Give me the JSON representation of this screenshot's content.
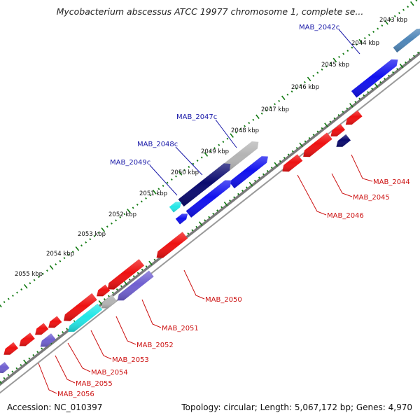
{
  "title": "Mycobacterium abscessus ATCC 19977 chromosome 1, complete se...",
  "footer": {
    "accession": "Accession: NC_010397",
    "stats": "Topology: circular; Length: 5,067,172 bp; Genes: 4,970"
  },
  "colors": {
    "backbone": "#808080",
    "tick": "#117a11",
    "forward_gene": "#ee1111",
    "reverse_gene": "#1111ee",
    "dark_gene": "#0a0a6e",
    "gray_gene": "#b4b4b4",
    "cyan_gene": "#22e6e6",
    "purple_gene": "#7060d0",
    "steel_gene": "#4f86b8",
    "label_reverse": "#1818a8",
    "label_forward": "#cc1111"
  },
  "scale": {
    "unit": "kbp",
    "labels": [
      "2043 kbp",
      "2044 kbp",
      "2045 kbp",
      "2046 kbp",
      "2047 kbp",
      "2048 kbp",
      "2049 kbp",
      "2050 kbp",
      "2051 kbp",
      "2052 kbp",
      "2053 kbp",
      "2054 kbp",
      "2055 kbp"
    ]
  },
  "genes": {
    "reverse_strand_labels": [
      "MAB_2042c",
      "MAB_2047c",
      "MAB_2048c",
      "MAB_2049c"
    ],
    "forward_strand_labels": [
      "MAB_2044",
      "MAB_2045",
      "MAB_2046",
      "MAB_2050",
      "MAB_2051",
      "MAB_2052",
      "MAB_2053",
      "MAB_2054",
      "MAB_2055",
      "MAB_2056"
    ]
  }
}
